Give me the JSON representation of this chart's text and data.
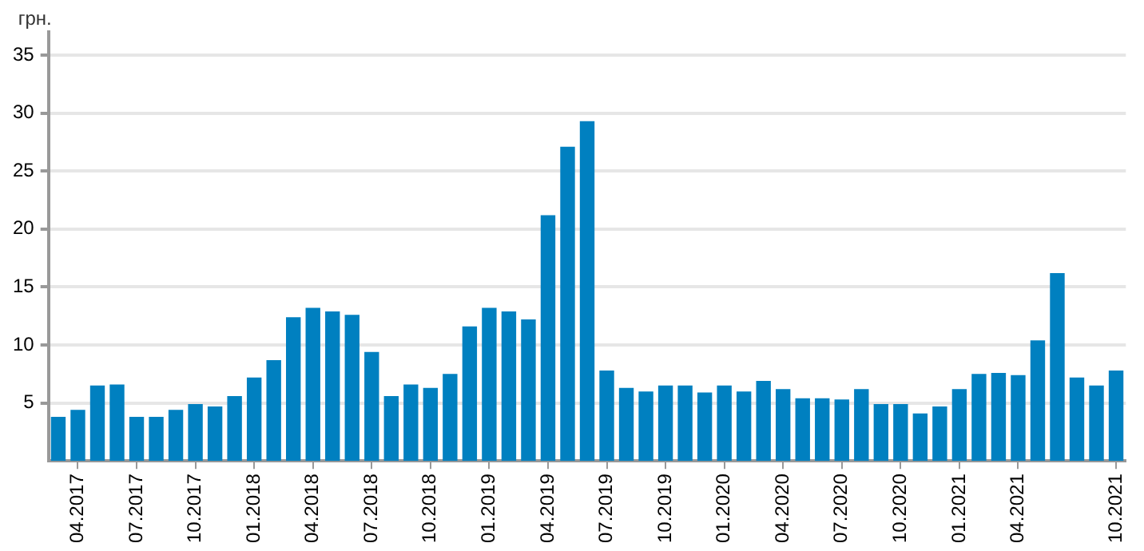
{
  "chart_data": {
    "type": "bar",
    "ylabel": "грн.",
    "categories": [
      null,
      "04.2017",
      null,
      null,
      "07.2017",
      null,
      null,
      "10.2017",
      null,
      null,
      "01.2018",
      null,
      null,
      "04.2018",
      null,
      null,
      "07.2018",
      null,
      null,
      "10.2018",
      null,
      null,
      "01.2019",
      null,
      null,
      "04.2019",
      null,
      null,
      "07.2019",
      null,
      null,
      "10.2019",
      null,
      null,
      "01.2020",
      null,
      null,
      "04.2020",
      null,
      null,
      "07.2020",
      null,
      null,
      "10.2020",
      null,
      null,
      "01.2021",
      null,
      null,
      "04.2021",
      null,
      null,
      null,
      null,
      "10.2021"
    ],
    "values": [
      3.8,
      4.4,
      6.5,
      6.6,
      3.8,
      3.8,
      4.4,
      4.9,
      4.7,
      5.6,
      7.2,
      8.7,
      12.4,
      13.2,
      12.9,
      12.6,
      9.4,
      5.6,
      6.6,
      6.3,
      7.5,
      11.6,
      13.2,
      12.9,
      12.2,
      21.2,
      27.1,
      29.3,
      7.8,
      6.3,
      6.0,
      6.5,
      6.5,
      5.9,
      6.5,
      6.0,
      6.9,
      6.2,
      5.4,
      5.4,
      5.3,
      6.2,
      4.9,
      4.9,
      4.1,
      4.7,
      6.2,
      7.5,
      7.6,
      7.4,
      10.4,
      16.2,
      7.2,
      6.5,
      7.8
    ],
    "color": "#0080c0",
    "ylim": [
      0,
      37
    ],
    "yticks": [
      5,
      10,
      15,
      20,
      25,
      30,
      35
    ],
    "grid": "y",
    "legend": false
  }
}
